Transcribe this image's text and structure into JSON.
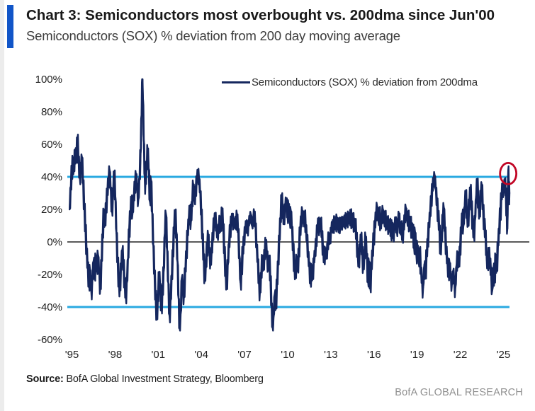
{
  "header": {
    "accent_color": "#1155c8"
  },
  "footer": {
    "source_label": "Source:",
    "source_text": " BofA Global Investment Strategy, Bloomberg",
    "brand": "BofA GLOBAL RESEARCH"
  },
  "chart_data": {
    "type": "line",
    "title": "Chart 3: Semiconductors most overbought vs. 200dma since Jun'00",
    "subtitle": "Semiconductors (SOX) % deviation from 200 day moving average",
    "legend_label": "Semiconductors (SOX) % deviation from 200dma",
    "series_name": "Semiconductors (SOX) % deviation from 200dma",
    "line_color": "#15275e",
    "daily_noise_band_pct": 3,
    "xlabel": "",
    "ylabel": "",
    "x_range": [
      1994.68,
      2025.42
    ],
    "ylim": [
      -60,
      100
    ],
    "y_ticks": {
      "values": [
        100,
        80,
        60,
        40,
        20,
        0,
        -20,
        -40,
        -60
      ],
      "labels": [
        "100%",
        "80%",
        "60%",
        "40%",
        "20%",
        "0%",
        "-20%",
        "-40%",
        "-60%"
      ]
    },
    "x_ticks": {
      "values": [
        1995,
        1998,
        2001,
        2004,
        2007,
        2010,
        2013,
        2016,
        2019,
        2022,
        2025
      ],
      "labels": [
        "'95",
        "'98",
        "'01",
        "'04",
        "'07",
        "'10",
        "'13",
        "'16",
        "'19",
        "'22",
        "'25"
      ]
    },
    "ref_lines": [
      {
        "y": 40,
        "color": "#29a9e1",
        "width": 3
      },
      {
        "y": -40,
        "color": "#29a9e1",
        "width": 3
      },
      {
        "y": 0,
        "color": "#434343",
        "width": 1.8
      }
    ],
    "annotation_circle": {
      "x": 2025.33,
      "y": 42,
      "color": "#c10625"
    },
    "points": [
      [
        1994.84,
        20
      ],
      [
        1994.92,
        34
      ],
      [
        1995.0,
        45
      ],
      [
        1995.06,
        50
      ],
      [
        1995.14,
        44
      ],
      [
        1995.22,
        56
      ],
      [
        1995.3,
        50
      ],
      [
        1995.38,
        63
      ],
      [
        1995.46,
        52
      ],
      [
        1995.54,
        40
      ],
      [
        1995.62,
        46
      ],
      [
        1995.7,
        52
      ],
      [
        1995.78,
        36
      ],
      [
        1995.86,
        22
      ],
      [
        1995.94,
        8
      ],
      [
        1996.02,
        -5
      ],
      [
        1996.1,
        -15
      ],
      [
        1996.18,
        -25
      ],
      [
        1996.26,
        -17
      ],
      [
        1996.34,
        -30
      ],
      [
        1996.42,
        -24
      ],
      [
        1996.5,
        -12
      ],
      [
        1996.58,
        -20
      ],
      [
        1996.66,
        -10
      ],
      [
        1996.74,
        -16
      ],
      [
        1996.82,
        -8
      ],
      [
        1996.9,
        -20
      ],
      [
        1996.98,
        -28
      ],
      [
        1997.06,
        -12
      ],
      [
        1997.14,
        5
      ],
      [
        1997.22,
        18
      ],
      [
        1997.3,
        12
      ],
      [
        1997.38,
        22
      ],
      [
        1997.46,
        30
      ],
      [
        1997.54,
        38
      ],
      [
        1997.62,
        44
      ],
      [
        1997.7,
        32
      ],
      [
        1997.78,
        20
      ],
      [
        1997.86,
        30
      ],
      [
        1997.94,
        42
      ],
      [
        1998.02,
        28
      ],
      [
        1998.1,
        5
      ],
      [
        1998.18,
        -12
      ],
      [
        1998.26,
        -25
      ],
      [
        1998.34,
        -28
      ],
      [
        1998.42,
        -15
      ],
      [
        1998.5,
        -5
      ],
      [
        1998.58,
        -14
      ],
      [
        1998.66,
        -24
      ],
      [
        1998.74,
        -33
      ],
      [
        1998.82,
        -25
      ],
      [
        1998.9,
        -10
      ],
      [
        1998.98,
        8
      ],
      [
        1999.06,
        16
      ],
      [
        1999.14,
        26
      ],
      [
        1999.22,
        18
      ],
      [
        1999.3,
        28
      ],
      [
        1999.38,
        35
      ],
      [
        1999.46,
        41
      ],
      [
        1999.54,
        33
      ],
      [
        1999.62,
        26
      ],
      [
        1999.7,
        40
      ],
      [
        1999.78,
        55
      ],
      [
        1999.84,
        78
      ],
      [
        1999.88,
        100
      ],
      [
        1999.94,
        88
      ],
      [
        2000.0,
        62
      ],
      [
        2000.06,
        40
      ],
      [
        2000.12,
        37
      ],
      [
        2000.2,
        48
      ],
      [
        2000.26,
        57
      ],
      [
        2000.34,
        45
      ],
      [
        2000.42,
        25
      ],
      [
        2000.5,
        38
      ],
      [
        2000.58,
        18
      ],
      [
        2000.66,
        -2
      ],
      [
        2000.74,
        -20
      ],
      [
        2000.82,
        -33
      ],
      [
        2000.9,
        -45
      ],
      [
        2000.98,
        -35
      ],
      [
        2001.06,
        -20
      ],
      [
        2001.14,
        -28
      ],
      [
        2001.22,
        -40
      ],
      [
        2001.3,
        -30
      ],
      [
        2001.38,
        -18
      ],
      [
        2001.46,
        5
      ],
      [
        2001.54,
        17
      ],
      [
        2001.62,
        -5
      ],
      [
        2001.7,
        -25
      ],
      [
        2001.78,
        -45
      ],
      [
        2001.86,
        -36
      ],
      [
        2001.94,
        -20
      ],
      [
        2002.02,
        -8
      ],
      [
        2002.1,
        8
      ],
      [
        2002.18,
        17
      ],
      [
        2002.26,
        6
      ],
      [
        2002.34,
        -12
      ],
      [
        2002.42,
        -35
      ],
      [
        2002.48,
        -53
      ],
      [
        2002.56,
        -44
      ],
      [
        2002.64,
        -22
      ],
      [
        2002.72,
        -28
      ],
      [
        2002.8,
        -32
      ],
      [
        2002.88,
        -18
      ],
      [
        2002.96,
        -6
      ],
      [
        2003.04,
        4
      ],
      [
        2003.12,
        14
      ],
      [
        2003.2,
        20
      ],
      [
        2003.28,
        13
      ],
      [
        2003.36,
        25
      ],
      [
        2003.44,
        35
      ],
      [
        2003.52,
        26
      ],
      [
        2003.6,
        32
      ],
      [
        2003.68,
        38
      ],
      [
        2003.76,
        43
      ],
      [
        2003.84,
        39
      ],
      [
        2003.92,
        30
      ],
      [
        2004.0,
        18
      ],
      [
        2004.08,
        4
      ],
      [
        2004.16,
        -10
      ],
      [
        2004.24,
        -23
      ],
      [
        2004.32,
        -13
      ],
      [
        2004.4,
        -3
      ],
      [
        2004.48,
        4
      ],
      [
        2004.56,
        -6
      ],
      [
        2004.64,
        -13
      ],
      [
        2004.72,
        -6
      ],
      [
        2004.8,
        5
      ],
      [
        2004.88,
        12
      ],
      [
        2004.96,
        16
      ],
      [
        2005.04,
        9
      ],
      [
        2005.12,
        3
      ],
      [
        2005.2,
        9
      ],
      [
        2005.28,
        14
      ],
      [
        2005.36,
        8
      ],
      [
        2005.44,
        20
      ],
      [
        2005.52,
        10
      ],
      [
        2005.6,
        -6
      ],
      [
        2005.68,
        -18
      ],
      [
        2005.76,
        -26
      ],
      [
        2005.84,
        -14
      ],
      [
        2005.92,
        0
      ],
      [
        2006.0,
        8
      ],
      [
        2006.08,
        13
      ],
      [
        2006.16,
        16
      ],
      [
        2006.24,
        9
      ],
      [
        2006.32,
        14
      ],
      [
        2006.4,
        11
      ],
      [
        2006.48,
        17
      ],
      [
        2006.56,
        6
      ],
      [
        2006.64,
        -8
      ],
      [
        2006.72,
        -25
      ],
      [
        2006.8,
        -16
      ],
      [
        2006.88,
        -6
      ],
      [
        2006.96,
        2
      ],
      [
        2007.04,
        7
      ],
      [
        2007.12,
        12
      ],
      [
        2007.2,
        7
      ],
      [
        2007.28,
        11
      ],
      [
        2007.36,
        15
      ],
      [
        2007.44,
        17
      ],
      [
        2007.52,
        10
      ],
      [
        2007.6,
        14
      ],
      [
        2007.68,
        18
      ],
      [
        2007.76,
        10
      ],
      [
        2007.84,
        -2
      ],
      [
        2007.92,
        -12
      ],
      [
        2008.0,
        -24
      ],
      [
        2008.08,
        -30
      ],
      [
        2008.16,
        -20
      ],
      [
        2008.24,
        -10
      ],
      [
        2008.32,
        -16
      ],
      [
        2008.4,
        -6
      ],
      [
        2008.48,
        0
      ],
      [
        2008.56,
        -8
      ],
      [
        2008.64,
        -16
      ],
      [
        2008.72,
        -10
      ],
      [
        2008.8,
        -22
      ],
      [
        2008.88,
        -38
      ],
      [
        2008.94,
        -52
      ],
      [
        2009.02,
        -46
      ],
      [
        2009.1,
        -32
      ],
      [
        2009.18,
        -38
      ],
      [
        2009.26,
        -26
      ],
      [
        2009.34,
        -12
      ],
      [
        2009.42,
        2
      ],
      [
        2009.5,
        14
      ],
      [
        2009.58,
        27
      ],
      [
        2009.66,
        20
      ],
      [
        2009.74,
        13
      ],
      [
        2009.82,
        21
      ],
      [
        2009.9,
        26
      ],
      [
        2009.98,
        16
      ],
      [
        2010.06,
        23
      ],
      [
        2010.14,
        13
      ],
      [
        2010.22,
        19
      ],
      [
        2010.3,
        8
      ],
      [
        2010.38,
        -4
      ],
      [
        2010.46,
        -14
      ],
      [
        2010.54,
        -20
      ],
      [
        2010.62,
        -10
      ],
      [
        2010.7,
        -17
      ],
      [
        2010.78,
        -6
      ],
      [
        2010.86,
        6
      ],
      [
        2010.94,
        14
      ],
      [
        2011.02,
        19
      ],
      [
        2011.1,
        12
      ],
      [
        2011.18,
        17
      ],
      [
        2011.26,
        9
      ],
      [
        2011.34,
        2
      ],
      [
        2011.42,
        -7
      ],
      [
        2011.5,
        -14
      ],
      [
        2011.58,
        -24
      ],
      [
        2011.66,
        -16
      ],
      [
        2011.74,
        -21
      ],
      [
        2011.82,
        -12
      ],
      [
        2011.9,
        -6
      ],
      [
        2011.98,
        0
      ],
      [
        2012.06,
        8
      ],
      [
        2012.14,
        13
      ],
      [
        2012.22,
        7
      ],
      [
        2012.3,
        14
      ],
      [
        2012.38,
        4
      ],
      [
        2012.46,
        -4
      ],
      [
        2012.54,
        -11
      ],
      [
        2012.62,
        -5
      ],
      [
        2012.7,
        -9
      ],
      [
        2012.78,
        -2
      ],
      [
        2012.86,
        4
      ],
      [
        2012.94,
        1
      ],
      [
        2013.02,
        7
      ],
      [
        2013.1,
        12
      ],
      [
        2013.18,
        8
      ],
      [
        2013.26,
        14
      ],
      [
        2013.34,
        9
      ],
      [
        2013.42,
        15
      ],
      [
        2013.5,
        8
      ],
      [
        2013.58,
        13
      ],
      [
        2013.66,
        9
      ],
      [
        2013.74,
        14
      ],
      [
        2013.82,
        10
      ],
      [
        2013.9,
        15
      ],
      [
        2013.98,
        11
      ],
      [
        2014.06,
        16
      ],
      [
        2014.14,
        11
      ],
      [
        2014.22,
        17
      ],
      [
        2014.3,
        12
      ],
      [
        2014.38,
        18
      ],
      [
        2014.46,
        11
      ],
      [
        2014.54,
        16
      ],
      [
        2014.62,
        8
      ],
      [
        2014.7,
        13
      ],
      [
        2014.78,
        3
      ],
      [
        2014.86,
        -6
      ],
      [
        2014.94,
        -13
      ],
      [
        2015.02,
        -4
      ],
      [
        2015.1,
        4
      ],
      [
        2015.18,
        -6
      ],
      [
        2015.26,
        -15
      ],
      [
        2015.34,
        -7
      ],
      [
        2015.42,
        3
      ],
      [
        2015.5,
        -8
      ],
      [
        2015.58,
        -24
      ],
      [
        2015.66,
        -13
      ],
      [
        2015.74,
        -28
      ],
      [
        2015.82,
        -16
      ],
      [
        2015.9,
        -6
      ],
      [
        2015.98,
        3
      ],
      [
        2016.06,
        10
      ],
      [
        2016.14,
        17
      ],
      [
        2016.22,
        22
      ],
      [
        2016.3,
        13
      ],
      [
        2016.38,
        19
      ],
      [
        2016.46,
        10
      ],
      [
        2016.54,
        15
      ],
      [
        2016.62,
        20
      ],
      [
        2016.7,
        12
      ],
      [
        2016.78,
        17
      ],
      [
        2016.86,
        10
      ],
      [
        2016.94,
        14
      ],
      [
        2017.02,
        7
      ],
      [
        2017.1,
        13
      ],
      [
        2017.18,
        5
      ],
      [
        2017.26,
        11
      ],
      [
        2017.34,
        3
      ],
      [
        2017.42,
        9
      ],
      [
        2017.5,
        14
      ],
      [
        2017.58,
        7
      ],
      [
        2017.66,
        12
      ],
      [
        2017.74,
        17
      ],
      [
        2017.82,
        6
      ],
      [
        2017.9,
        11
      ],
      [
        2017.98,
        3
      ],
      [
        2018.06,
        9
      ],
      [
        2018.14,
        15
      ],
      [
        2018.22,
        21
      ],
      [
        2018.3,
        13
      ],
      [
        2018.38,
        17
      ],
      [
        2018.46,
        9
      ],
      [
        2018.54,
        14
      ],
      [
        2018.62,
        4
      ],
      [
        2018.7,
        10
      ],
      [
        2018.78,
        -3
      ],
      [
        2018.86,
        6
      ],
      [
        2018.94,
        -8
      ],
      [
        2019.02,
        -2
      ],
      [
        2019.1,
        -12
      ],
      [
        2019.18,
        -6
      ],
      [
        2019.26,
        -16
      ],
      [
        2019.34,
        -25
      ],
      [
        2019.42,
        -28
      ],
      [
        2019.5,
        -14
      ],
      [
        2019.58,
        -19
      ],
      [
        2019.66,
        -8
      ],
      [
        2019.74,
        1
      ],
      [
        2019.82,
        9
      ],
      [
        2019.9,
        18
      ],
      [
        2019.98,
        26
      ],
      [
        2020.06,
        33
      ],
      [
        2020.14,
        38
      ],
      [
        2020.22,
        41
      ],
      [
        2020.3,
        32
      ],
      [
        2020.38,
        24
      ],
      [
        2020.46,
        17
      ],
      [
        2020.54,
        10
      ],
      [
        2020.62,
        -7
      ],
      [
        2020.7,
        3
      ],
      [
        2020.78,
        14
      ],
      [
        2020.86,
        21
      ],
      [
        2020.94,
        6
      ],
      [
        2021.02,
        -4
      ],
      [
        2021.1,
        -12
      ],
      [
        2021.18,
        -19
      ],
      [
        2021.26,
        -13
      ],
      [
        2021.34,
        -22
      ],
      [
        2021.42,
        -26
      ],
      [
        2021.5,
        -18
      ],
      [
        2021.58,
        -24
      ],
      [
        2021.66,
        -28
      ],
      [
        2021.74,
        -14
      ],
      [
        2021.82,
        -8
      ],
      [
        2021.9,
        -14
      ],
      [
        2021.98,
        -4
      ],
      [
        2022.06,
        6
      ],
      [
        2022.14,
        17
      ],
      [
        2022.22,
        10
      ],
      [
        2022.3,
        22
      ],
      [
        2022.38,
        29
      ],
      [
        2022.46,
        18
      ],
      [
        2022.54,
        12
      ],
      [
        2022.62,
        24
      ],
      [
        2022.7,
        33
      ],
      [
        2022.78,
        22
      ],
      [
        2022.86,
        12
      ],
      [
        2022.94,
        5
      ],
      [
        2023.02,
        13
      ],
      [
        2023.1,
        28
      ],
      [
        2023.18,
        36
      ],
      [
        2023.26,
        24
      ],
      [
        2023.34,
        17
      ],
      [
        2023.42,
        30
      ],
      [
        2023.5,
        35
      ],
      [
        2023.58,
        20
      ],
      [
        2023.66,
        12
      ],
      [
        2023.74,
        7
      ],
      [
        2023.82,
        -8
      ],
      [
        2023.9,
        -15
      ],
      [
        2023.98,
        -6
      ],
      [
        2024.06,
        -12
      ],
      [
        2024.14,
        -18
      ],
      [
        2024.22,
        -30
      ],
      [
        2024.3,
        -16
      ],
      [
        2024.38,
        -22
      ],
      [
        2024.46,
        -10
      ],
      [
        2024.54,
        -16
      ],
      [
        2024.62,
        -2
      ],
      [
        2024.7,
        8
      ],
      [
        2024.78,
        18
      ],
      [
        2024.86,
        27
      ],
      [
        2024.94,
        35
      ],
      [
        2025.02,
        32
      ],
      [
        2025.1,
        38
      ],
      [
        2025.16,
        30
      ],
      [
        2025.22,
        20
      ],
      [
        2025.27,
        8
      ],
      [
        2025.33,
        44
      ],
      [
        2025.38,
        34
      ],
      [
        2025.42,
        30
      ]
    ]
  }
}
